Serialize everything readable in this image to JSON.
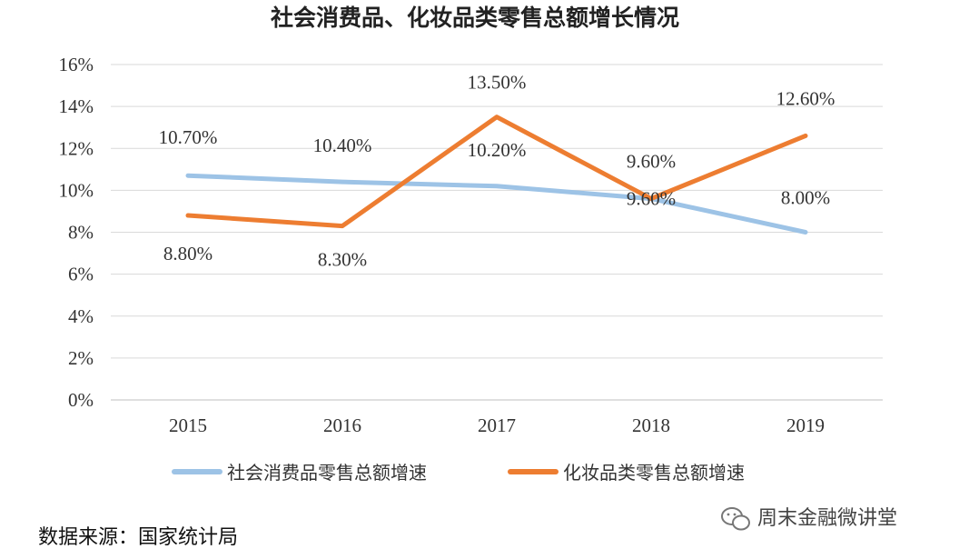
{
  "chart_data": {
    "type": "line",
    "title": "社会消费品、化妆品类零售总额增长情况",
    "categories": [
      "2015",
      "2016",
      "2017",
      "2018",
      "2019"
    ],
    "ylim": [
      0,
      16
    ],
    "yticks": [
      "0%",
      "2%",
      "4%",
      "6%",
      "8%",
      "10%",
      "12%",
      "14%",
      "16%"
    ],
    "grid": true,
    "legend_position": "bottom",
    "series": [
      {
        "name": "社会消费品零售总额增速",
        "values": [
          10.7,
          10.4,
          10.2,
          9.6,
          8.0
        ],
        "labels": [
          "10.70%",
          "10.40%",
          "10.20%",
          "9.60%",
          "8.00%"
        ],
        "color": "#9DC3E6"
      },
      {
        "name": "化妆品类零售总额增速",
        "values": [
          8.8,
          8.3,
          13.5,
          9.6,
          12.6
        ],
        "labels": [
          "8.80%",
          "8.30%",
          "13.50%",
          "9.60%",
          "12.60%"
        ],
        "color": "#ED7D31"
      }
    ]
  },
  "footer": {
    "source": "数据来源：国家统计局",
    "watermark": "周末金融微讲堂",
    "watermark_icon": "wechat-icon"
  }
}
